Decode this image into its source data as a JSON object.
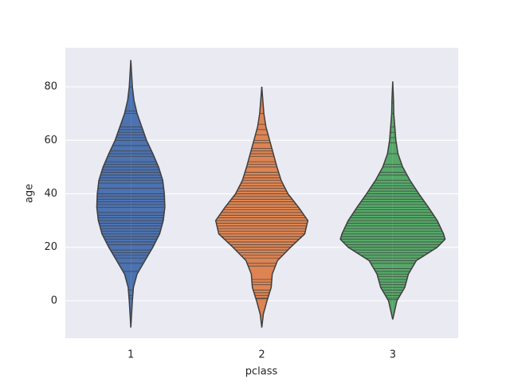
{
  "chart_data": {
    "type": "violin",
    "x_label": "pclass",
    "y_label": "age",
    "categories": [
      "1",
      "2",
      "3"
    ],
    "ylim": [
      -14,
      94.6
    ],
    "yticks": [
      0,
      20,
      40,
      60,
      80
    ],
    "grid": true,
    "violins": [
      {
        "color": "#4c72b0",
        "kde_age": [
          -10,
          0,
          5,
          10,
          15,
          20,
          25,
          30,
          35,
          40,
          45,
          50,
          55,
          60,
          65,
          70,
          75,
          80,
          85,
          90
        ],
        "kde_width": [
          0,
          0.03,
          0.05,
          0.12,
          0.27,
          0.42,
          0.55,
          0.62,
          0.65,
          0.64,
          0.61,
          0.53,
          0.42,
          0.3,
          0.21,
          0.12,
          0.06,
          0.03,
          0.015,
          0
        ],
        "sticks": [
          0.9,
          2,
          4,
          11,
          14,
          16,
          17,
          18,
          19,
          21,
          22,
          23,
          24,
          25,
          26,
          27,
          28,
          29,
          30,
          31,
          32,
          33,
          35,
          36,
          37,
          38,
          39,
          40,
          42,
          44,
          45,
          46,
          47,
          48,
          49,
          50,
          51,
          52,
          54,
          55,
          56,
          58,
          60,
          61,
          62,
          63,
          64,
          65,
          70,
          71,
          80
        ]
      },
      {
        "color": "#dd8452",
        "kde_age": [
          -10,
          -5,
          0,
          5,
          10,
          15,
          20,
          25,
          30,
          35,
          40,
          45,
          50,
          55,
          60,
          65,
          70,
          75,
          80
        ],
        "kde_width": [
          0,
          0.03,
          0.1,
          0.18,
          0.2,
          0.3,
          0.55,
          0.82,
          0.88,
          0.7,
          0.5,
          0.37,
          0.29,
          0.22,
          0.15,
          0.08,
          0.04,
          0.02,
          0
        ],
        "sticks": [
          0.7,
          1,
          2,
          3,
          4,
          6,
          7,
          8,
          13,
          14,
          16,
          17,
          18,
          19,
          20,
          21,
          22,
          23,
          24,
          25,
          26,
          27,
          28,
          29,
          30,
          31,
          32,
          33,
          34,
          35,
          36,
          37,
          38,
          39,
          40,
          41,
          42,
          43,
          44,
          45,
          46,
          47,
          48,
          50,
          51,
          52,
          54,
          55,
          56,
          57,
          59,
          60,
          62,
          64,
          66,
          70
        ]
      },
      {
        "color": "#55a868",
        "kde_age": [
          -7,
          0,
          5,
          10,
          15,
          20,
          23,
          25,
          30,
          35,
          40,
          45,
          50,
          55,
          60,
          65,
          70,
          75,
          82
        ],
        "kde_width": [
          0,
          0.08,
          0.23,
          0.3,
          0.45,
          0.85,
          1,
          0.97,
          0.85,
          0.68,
          0.5,
          0.33,
          0.19,
          0.1,
          0.06,
          0.04,
          0.02,
          0.015,
          0
        ],
        "sticks": [
          0.4,
          1,
          2,
          3,
          4,
          5,
          6,
          7,
          8,
          9,
          10,
          11,
          12,
          14,
          15,
          16,
          17,
          18,
          19,
          20,
          21,
          22,
          23,
          24,
          25,
          26,
          27,
          28,
          29,
          30,
          31,
          32,
          33,
          34,
          35,
          36,
          37,
          38,
          39,
          40,
          41,
          42,
          43,
          44,
          45,
          47,
          48,
          50,
          51,
          55,
          59,
          61,
          63,
          65,
          70,
          74
        ]
      }
    ]
  }
}
